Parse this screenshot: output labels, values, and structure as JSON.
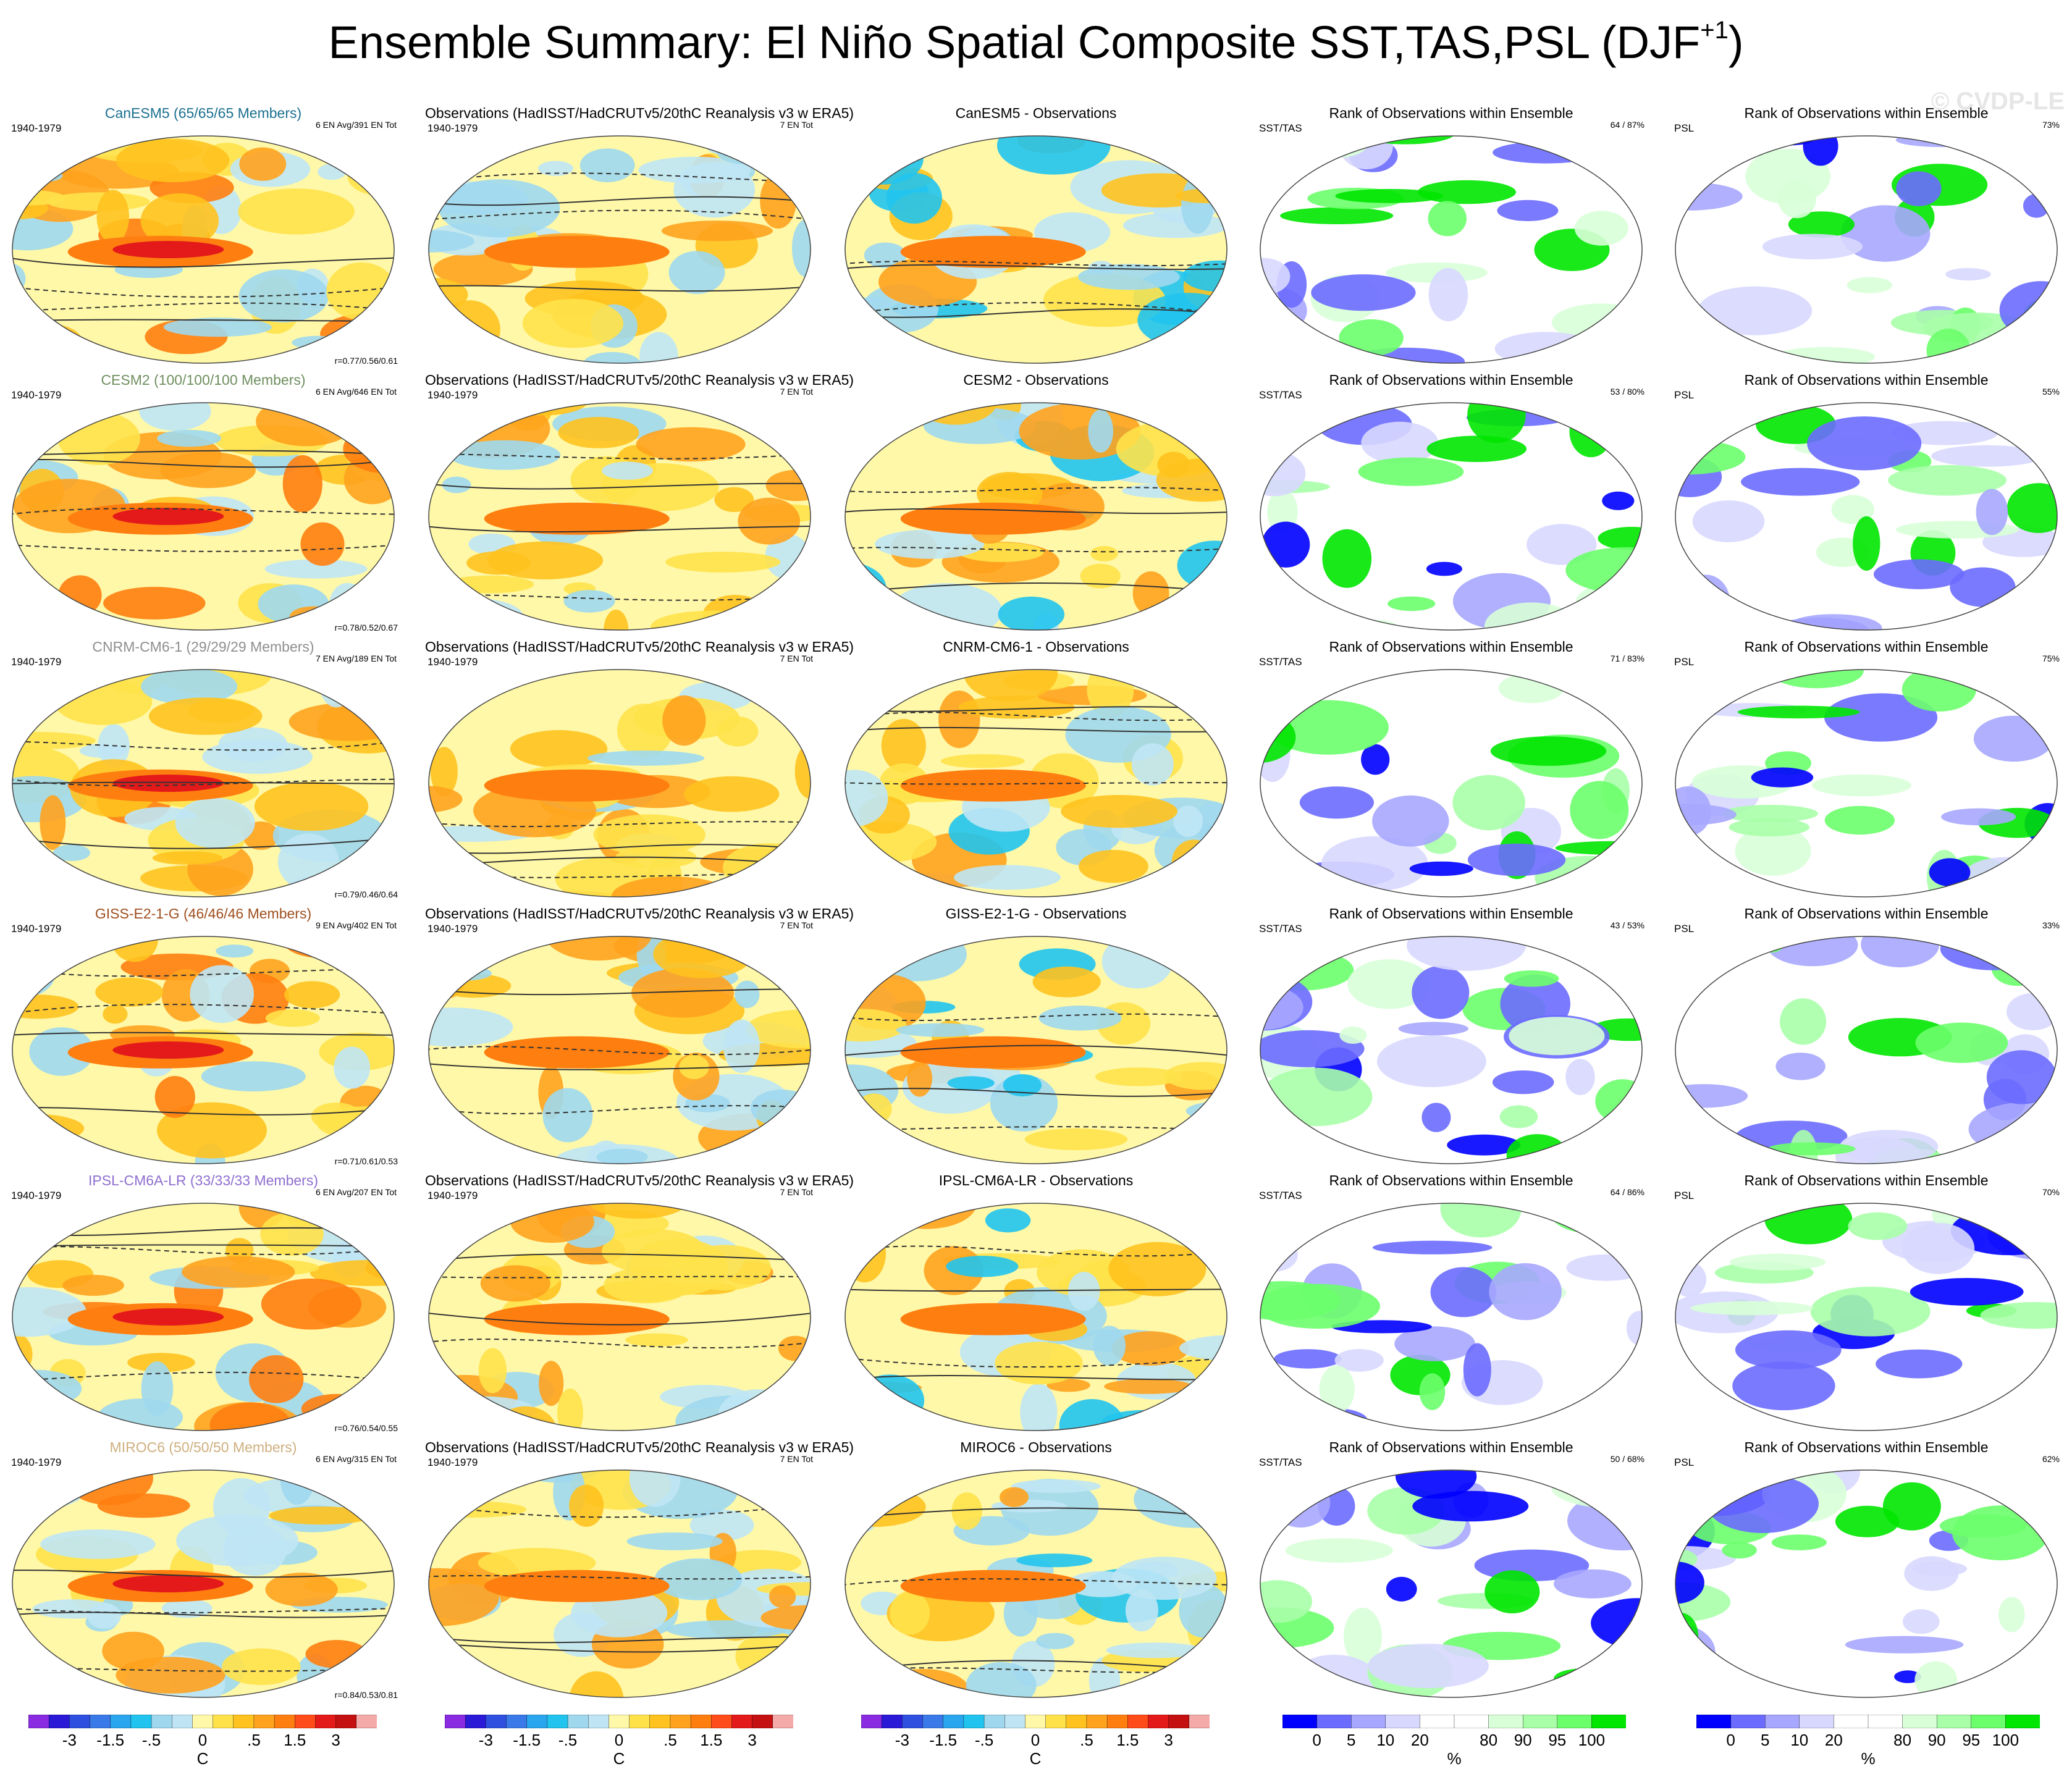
{
  "title": "Ensemble Summary: El Niño Spatial Composite SST,TAS,PSL (DJF",
  "title_sup": "+1",
  "title_close": ")",
  "watermark": "© CVDP-LE",
  "colors": {
    "temp": [
      "#8a2be2",
      "#2a1ad8",
      "#2f4fe0",
      "#3a7ae8",
      "#2aa6ee",
      "#21c4ee",
      "#9fd8ee",
      "#bfe5f5",
      "#fff8a8",
      "#ffe24a",
      "#ffc21e",
      "#ffa21e",
      "#ff7e10",
      "#ff4c1a",
      "#e41a1a",
      "#c41010",
      "#f5aaaa"
    ],
    "rank": [
      "#0000ff",
      "#6b6bff",
      "#a7a7ff",
      "#d8d8ff",
      "#ffffff",
      "#ffffff",
      "#d8ffd8",
      "#a8ffa8",
      "#6bff6b",
      "#00e600"
    ]
  },
  "chart_data": [
    {
      "type": "heatmap",
      "rows": [
        {
          "title": "CanESM5 (65/65/65 Members)",
          "title_color": "#1a6f8f",
          "period": "1940-1979",
          "info": "6 EN Avg/391 EN Tot",
          "corr": "r=0.77/0.56/0.61"
        },
        {
          "title": "CESM2 (100/100/100 Members)",
          "title_color": "#6f8f5f",
          "period": "1940-1979",
          "info": "6 EN Avg/646 EN Tot",
          "corr": "r=0.78/0.52/0.67"
        },
        {
          "title": "CNRM-CM6-1 (29/29/29 Members)",
          "title_color": "#8f8f8f",
          "period": "1940-1979",
          "info": "7 EN Avg/189 EN Tot",
          "corr": "r=0.79/0.46/0.64"
        },
        {
          "title": "GISS-E2-1-G (46/46/46 Members)",
          "title_color": "#9f4f1f",
          "period": "1940-1979",
          "info": "9 EN Avg/402 EN Tot",
          "corr": "r=0.71/0.61/0.53"
        },
        {
          "title": "IPSL-CM6A-LR (33/33/33 Members)",
          "title_color": "#8f6fcf",
          "period": "1940-1979",
          "info": "6 EN Avg/207 EN Tot",
          "corr": "r=0.76/0.54/0.55"
        },
        {
          "title": "MIROC6 (50/50/50 Members)",
          "title_color": "#cfaf7f",
          "period": "1940-1979",
          "info": "6 EN Avg/315 EN Tot",
          "corr": "r=0.84/0.53/0.81"
        }
      ]
    },
    {
      "type": "heatmap",
      "rows": [
        {
          "title": "Observations (HadISST/HadCRUTv5/20thC Reanalysis v3 w ERA5)",
          "period": "1940-1979",
          "info": "7 EN Tot"
        },
        {
          "title": "Observations (HadISST/HadCRUTv5/20thC Reanalysis v3 w ERA5)",
          "period": "1940-1979",
          "info": "7 EN Tot"
        },
        {
          "title": "Observations (HadISST/HadCRUTv5/20thC Reanalysis v3 w ERA5)",
          "period": "1940-1979",
          "info": "7 EN Tot"
        },
        {
          "title": "Observations (HadISST/HadCRUTv5/20thC Reanalysis v3 w ERA5)",
          "period": "1940-1979",
          "info": "7 EN Tot"
        },
        {
          "title": "Observations (HadISST/HadCRUTv5/20thC Reanalysis v3 w ERA5)",
          "period": "1940-1979",
          "info": "7 EN Tot"
        },
        {
          "title": "Observations (HadISST/HadCRUTv5/20thC Reanalysis v3 w ERA5)",
          "period": "1940-1979",
          "info": "7 EN Tot"
        }
      ]
    },
    {
      "type": "heatmap",
      "rows": [
        {
          "title": "CanESM5 - Observations"
        },
        {
          "title": "CESM2 - Observations"
        },
        {
          "title": "CNRM-CM6-1 - Observations"
        },
        {
          "title": "GISS-E2-1-G - Observations"
        },
        {
          "title": "IPSL-CM6A-LR - Observations"
        },
        {
          "title": "MIROC6 - Observations"
        }
      ]
    },
    {
      "type": "heatmap",
      "rows": [
        {
          "title": "Rank of Observations within Ensemble",
          "label": "SST/TAS",
          "info": "64 /  87%"
        },
        {
          "title": "Rank of Observations within Ensemble",
          "label": "SST/TAS",
          "info": "53 /  80%"
        },
        {
          "title": "Rank of Observations within Ensemble",
          "label": "SST/TAS",
          "info": "71 /  83%"
        },
        {
          "title": "Rank of Observations within Ensemble",
          "label": "SST/TAS",
          "info": "43 /  53%"
        },
        {
          "title": "Rank of Observations within Ensemble",
          "label": "SST/TAS",
          "info": "64 /  86%"
        },
        {
          "title": "Rank of Observations within Ensemble",
          "label": "SST/TAS",
          "info": "50 /  68%"
        }
      ]
    },
    {
      "type": "heatmap",
      "rows": [
        {
          "title": "Rank of Observations within Ensemble",
          "label": "PSL",
          "info": "73%"
        },
        {
          "title": "Rank of Observations within Ensemble",
          "label": "PSL",
          "info": "55%"
        },
        {
          "title": "Rank of Observations within Ensemble",
          "label": "PSL",
          "info": "75%"
        },
        {
          "title": "Rank of Observations within Ensemble",
          "label": "PSL",
          "info": "33%"
        },
        {
          "title": "Rank of Observations within Ensemble",
          "label": "PSL",
          "info": "70%"
        },
        {
          "title": "Rank of Observations within Ensemble",
          "label": "PSL",
          "info": "62%"
        }
      ]
    }
  ],
  "colorbars": {
    "temp": {
      "ticks": [
        "-3",
        "-1.5",
        "-.5",
        "0",
        ".5",
        "1.5",
        "3"
      ],
      "unit": "C"
    },
    "rank": {
      "ticks": [
        "0",
        "5",
        "10",
        "20",
        "80",
        "90",
        "95",
        "100"
      ],
      "unit": "%"
    }
  }
}
